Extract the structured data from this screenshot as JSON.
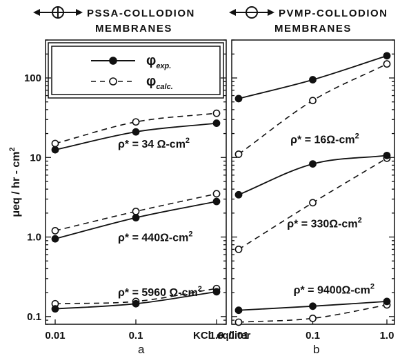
{
  "chart_data": [
    {
      "type": "line",
      "header": [
        "PSSA-COLLODION",
        "MEMBRANES"
      ],
      "header_symbol": "filled-and-open-circle-with-arrows",
      "sublabel": "a",
      "x": [
        0.01,
        0.1,
        1.0
      ],
      "x_ticks": [
        "0.01",
        "0.1",
        "1.0"
      ],
      "y_ticks": [
        "100",
        "10",
        "1.0",
        "0.1"
      ],
      "xscale": "log",
      "yscale": "log",
      "xlim": [
        0.01,
        1.0
      ],
      "ylim": [
        0.08,
        300
      ],
      "legend": {
        "placement": "top-inside",
        "entries": [
          {
            "label": "φexp.",
            "symbol": "φ",
            "subscript": "exp.",
            "style": "solid",
            "marker": "filled"
          },
          {
            "label": "φcalc.",
            "symbol": "φ",
            "subscript": "calc.",
            "style": "dashed",
            "marker": "open"
          }
        ]
      },
      "groups": [
        {
          "label": "ρ* = 34 Ω-cm²",
          "rho_text": "ρ* = 34 Ω-cm",
          "sup": "2",
          "label_anchor": [
            0.06,
            15
          ],
          "experimental": [
            12.5,
            21,
            27
          ],
          "calculated": [
            15,
            28,
            36
          ]
        },
        {
          "label": "ρ* = 440 Ω-cm²",
          "rho_text": "ρ* = 440Ω-cm",
          "sup": "2",
          "label_anchor": [
            0.06,
            1.0
          ],
          "experimental": [
            0.95,
            1.75,
            2.8
          ],
          "calculated": [
            1.2,
            2.1,
            3.5
          ]
        },
        {
          "label": "ρ* = 5960 Ω-cm²",
          "rho_text": "ρ* = 5960 Ω-cm",
          "sup": "2",
          "label_anchor": [
            0.06,
            0.205
          ],
          "experimental": [
            0.125,
            0.145,
            0.205
          ],
          "calculated": [
            0.145,
            0.155,
            0.225
          ]
        }
      ]
    },
    {
      "type": "line",
      "header": [
        "PVMP-COLLODION",
        "MEMBRANES"
      ],
      "header_symbol": "open-circle-with-arrows",
      "sublabel": "b",
      "x": [
        0.01,
        0.1,
        1.0
      ],
      "x_ticks": [
        "0.01",
        "0.1",
        "1.0"
      ],
      "xscale": "log",
      "yscale": "log",
      "xlim": [
        0.01,
        1.0
      ],
      "ylim": [
        0.08,
        300
      ],
      "groups": [
        {
          "label": "ρ* = 16 Ω-cm²",
          "rho_text": "ρ* = 16Ω-cm",
          "sup": "2",
          "label_anchor": [
            0.05,
            17
          ],
          "experimental": [
            55,
            95,
            190
          ],
          "calculated": [
            11,
            52,
            150
          ]
        },
        {
          "label": "ρ* = 330 Ω-cm²",
          "rho_text": "ρ* = 330Ω-cm",
          "sup": "2",
          "label_anchor": [
            0.045,
            1.5
          ],
          "experimental": [
            3.4,
            8.3,
            10.6
          ],
          "calculated": [
            0.7,
            2.7,
            9.8
          ]
        },
        {
          "label": "ρ* = 9400 Ω-cm²",
          "rho_text": "ρ* = 9400Ω-cm",
          "sup": "2",
          "label_anchor": [
            0.055,
            0.22
          ],
          "experimental": [
            0.12,
            0.135,
            0.155
          ],
          "calculated": [
            0.085,
            0.095,
            0.14
          ]
        }
      ]
    }
  ],
  "axes": {
    "ylabel": "μeq / hr - cm²",
    "ylabel_main": "μeq / hr - cm",
    "ylabel_sup": "2",
    "xlabel": "KCl  eq/liter"
  }
}
